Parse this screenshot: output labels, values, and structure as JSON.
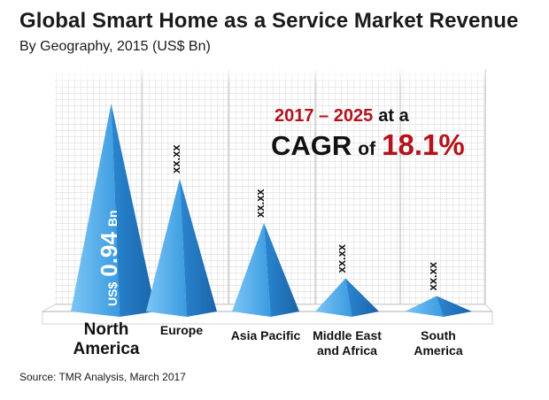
{
  "chart_data": {
    "type": "bar",
    "title": "Global Smart Home as a Service Market Revenue",
    "subtitle": "By Geography, 2015 (US$ Bn)",
    "categories": [
      [
        "North",
        "America"
      ],
      [
        "Europe"
      ],
      [
        "Asia Pacific"
      ],
      [
        "Middle East",
        "and Africa"
      ],
      [
        "South",
        "America"
      ]
    ],
    "values": [
      0.94,
      0.6,
      0.4,
      0.15,
      0.07
    ],
    "data_labels": [
      "0.94",
      "xx.xx",
      "xx.xx",
      "xx.xx",
      "xx.xx"
    ],
    "value_unit_prefix": "US$",
    "value_unit_suffix": "Bn",
    "xlabel": "",
    "ylabel": "",
    "ylim": [
      0,
      1.0
    ],
    "annotation": {
      "period": "2017 – 2025",
      "at_a": "at a",
      "cagr_word": "CAGR",
      "of_word": "of",
      "cagr_value": "18.1%"
    },
    "source": "Source: TMR Analysis, March 2017",
    "colors": {
      "pyramid_light": "#5cb3ec",
      "pyramid_mid": "#2f8fd8",
      "pyramid_dark": "#1f6fb6",
      "accent_red": "#b5121b",
      "grid": "#c8c8c8"
    }
  }
}
